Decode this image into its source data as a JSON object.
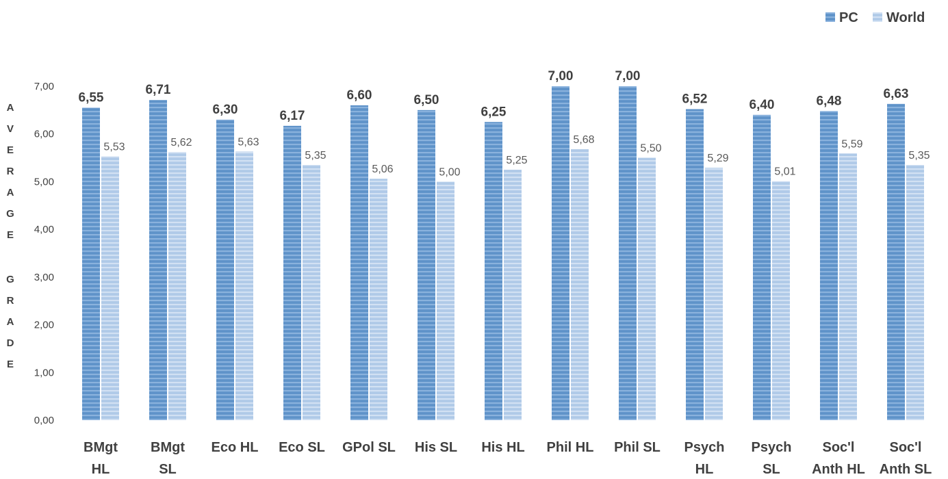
{
  "chart_data": {
    "type": "bar",
    "title": "",
    "xlabel": "",
    "ylabel": "AVERAGE GRADE",
    "ylim": [
      0,
      7
    ],
    "yticks": [
      "0,00",
      "1,00",
      "2,00",
      "3,00",
      "4,00",
      "5,00",
      "6,00",
      "7,00"
    ],
    "grid": false,
    "legend_position": "top-right",
    "categories": [
      [
        "BMgt",
        "HL"
      ],
      [
        "BMgt",
        "SL"
      ],
      [
        "Eco HL"
      ],
      [
        "Eco SL"
      ],
      [
        "GPol SL"
      ],
      [
        "His SL"
      ],
      [
        "His HL"
      ],
      [
        "Phil HL"
      ],
      [
        "Phil SL"
      ],
      [
        "Psych",
        "HL"
      ],
      [
        "Psych",
        "SL"
      ],
      [
        "Soc'l",
        "Anth HL"
      ],
      [
        "Soc'l",
        "Anth SL"
      ]
    ],
    "series": [
      {
        "name": "PC",
        "color": "#6a9bcf",
        "values": [
          6.55,
          6.71,
          6.3,
          6.17,
          6.6,
          6.5,
          6.25,
          7.0,
          7.0,
          6.52,
          6.4,
          6.48,
          6.63
        ],
        "labels": [
          "6,55",
          "6,71",
          "6,30",
          "6,17",
          "6,60",
          "6,50",
          "6,25",
          "7,00",
          "7,00",
          "6,52",
          "6,40",
          "6,48",
          "6,63"
        ]
      },
      {
        "name": "World",
        "color": "#b4cde9",
        "values": [
          5.53,
          5.62,
          5.63,
          5.35,
          5.06,
          5.0,
          5.25,
          5.68,
          5.5,
          5.29,
          5.01,
          5.59,
          5.35
        ],
        "labels": [
          "5,53",
          "5,62",
          "5,63",
          "5,35",
          "5,06",
          "5,00",
          "5,25",
          "5,68",
          "5,50",
          "5,29",
          "5,01",
          "5,59",
          "5,35"
        ]
      }
    ]
  }
}
